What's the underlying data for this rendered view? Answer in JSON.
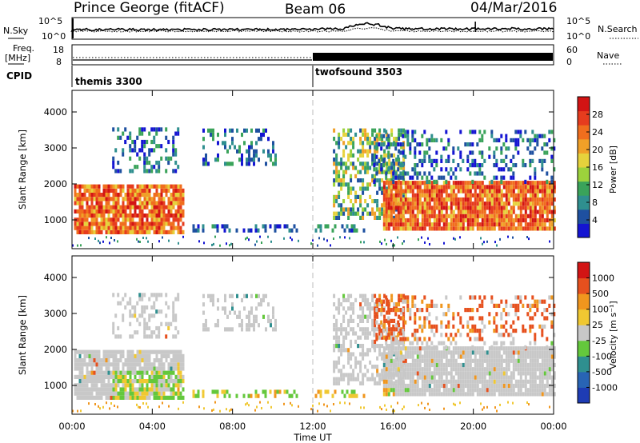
{
  "header": {
    "title": "Prince George (fitACF)",
    "beam": "Beam 06",
    "date": "04/Mar/2016"
  },
  "noise_panel": {
    "left_label": "N.Sky",
    "right_label": "N.Search",
    "ticks": [
      "10^5",
      "10^0"
    ]
  },
  "freq_panel": {
    "left_label": "Freq.",
    "left_unit": "[MHz]",
    "left_ticks": [
      "18",
      "8"
    ],
    "right_label": "Nave",
    "right_ticks": [
      "60",
      "0"
    ]
  },
  "cpid_panel": {
    "label": "CPID",
    "segments": [
      {
        "name": "themis 3300",
        "start_hour": 0
      },
      {
        "name": "twofsound 3503",
        "start_hour": 12
      }
    ]
  },
  "chart_data": [
    {
      "type": "heatmap",
      "name": "power",
      "ylabel": "Slant Range [km]",
      "yticks": [
        1000,
        2000,
        3000,
        4000
      ],
      "ylim": [
        200,
        4600
      ],
      "xlim": [
        0,
        24
      ],
      "colorbar": {
        "label": "Power [dB]",
        "ticks": [
          "28",
          "24",
          "20",
          "16",
          "12",
          "8",
          "4"
        ],
        "colors": [
          "#1414d2",
          "#1e50a0",
          "#2f8f8f",
          "#3aa35a",
          "#9cd23c",
          "#e6d23c",
          "#f0a028",
          "#f06e1e",
          "#e63c1e",
          "#d21414"
        ]
      },
      "regions": [
        {
          "x": [
            0.1,
            5.6
          ],
          "y": [
            600,
            1900
          ],
          "level": "high"
        },
        {
          "x": [
            2.0,
            5.3
          ],
          "y": [
            2300,
            3500
          ],
          "level": "low"
        },
        {
          "x": [
            6.5,
            10.1
          ],
          "y": [
            2500,
            3500
          ],
          "level": "low"
        },
        {
          "x": [
            6.0,
            14.5
          ],
          "y": [
            650,
            850
          ],
          "level": "low"
        },
        {
          "x": [
            13.0,
            16.5
          ],
          "y": [
            1000,
            3500
          ],
          "level": "mid"
        },
        {
          "x": [
            15.5,
            24.0
          ],
          "y": [
            700,
            2000
          ],
          "level": "high"
        },
        {
          "x": [
            15.0,
            24.0
          ],
          "y": [
            2000,
            3500
          ],
          "level": "low"
        }
      ]
    },
    {
      "type": "heatmap",
      "name": "velocity",
      "ylabel": "Slant Range [km]",
      "yticks": [
        1000,
        2000,
        3000,
        4000
      ],
      "ylim": [
        200,
        4600
      ],
      "xlim": [
        0,
        24
      ],
      "xlabel": "Time UT",
      "xticks": [
        "00:00",
        "04:00",
        "08:00",
        "12:00",
        "16:00",
        "20:00",
        "00:00"
      ],
      "colorbar": {
        "label": "Velocity [m s⁻¹]",
        "ticks": [
          "1000",
          "500",
          "100",
          "25",
          "-25",
          "-100",
          "-500",
          "-1000"
        ],
        "colors": [
          "#1e3cb4",
          "#2864b4",
          "#2f8f8f",
          "#64c83c",
          "#c8c8c8",
          "#f0c832",
          "#f0961e",
          "#e6501e",
          "#d21414"
        ]
      }
    }
  ]
}
